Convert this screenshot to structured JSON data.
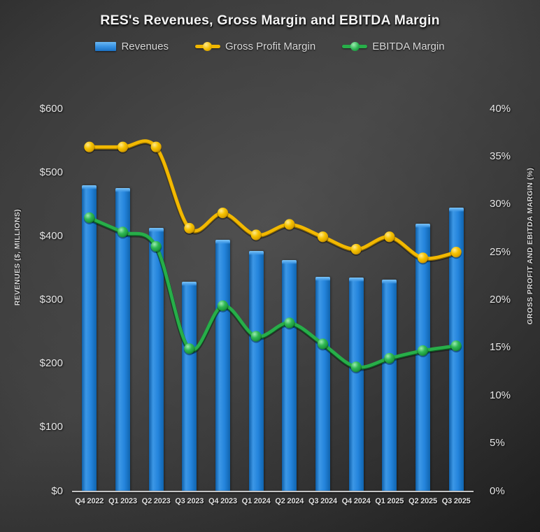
{
  "title": "RES's Revenues, Gross Margin and EBITDA Margin",
  "legend": [
    {
      "label": "Revenues",
      "swatch": "bar-swatch"
    },
    {
      "label": "Gross Profit Margin",
      "swatch": "line-dot-swatch"
    },
    {
      "label": "EBITDA Margin",
      "swatch": "line-dot-swatch"
    }
  ],
  "left_axis": {
    "title": "REVENUES ($, MILLIONS)",
    "tick_labels": [
      "$0",
      "$100",
      "$200",
      "$300",
      "$400",
      "$500",
      "$600"
    ],
    "tick_values": [
      0,
      100,
      200,
      300,
      400,
      500,
      600
    ]
  },
  "right_axis": {
    "title": "GROSS PROFIT AND EBITDA MARGIN (%)",
    "tick_labels": [
      "0%",
      "5%",
      "10%",
      "15%",
      "20%",
      "25%",
      "30%",
      "35%",
      "40%"
    ],
    "tick_values": [
      0,
      5,
      10,
      15,
      20,
      25,
      30,
      35,
      40
    ]
  },
  "colors": {
    "bar_blue": "#2484dc",
    "gross_margin_yellow": "#f0b600",
    "ebitda_green": "#27ae49",
    "axis_line": "#c4c4c4",
    "text": "#e8e8e8"
  },
  "chart_data": {
    "type": "bar",
    "subtype": "combo-bar-line",
    "categories": [
      "Q4 2022",
      "Q1 2023",
      "Q2 2023",
      "Q3 2023",
      "Q4 2023",
      "Q1 2024",
      "Q2 2024",
      "Q3 2024",
      "Q4 2024",
      "Q1 2025",
      "Q2 2025",
      "Q3 2025"
    ],
    "series": [
      {
        "name": "Revenues",
        "type": "bar",
        "axis": "left",
        "unit": "$M",
        "values": [
          480,
          475,
          413,
          329,
          394,
          377,
          362,
          336,
          335,
          332,
          420,
          445
        ]
      },
      {
        "name": "Gross Profit Margin",
        "type": "line",
        "axis": "right",
        "unit": "%",
        "values": [
          36.0,
          36.0,
          36.0,
          27.5,
          29.1,
          26.8,
          27.9,
          26.6,
          25.3,
          26.6,
          24.4,
          25.0
        ]
      },
      {
        "name": "EBITDA Margin",
        "type": "line",
        "axis": "right",
        "unit": "%",
        "values": [
          28.6,
          27.1,
          25.6,
          14.9,
          19.4,
          16.2,
          17.6,
          15.4,
          13.0,
          13.9,
          14.7,
          15.2
        ]
      }
    ],
    "title": "RES's Revenues, Gross Margin and EBITDA Margin",
    "xlabel": "",
    "ylabel_left": "REVENUES ($, MILLIONS)",
    "ylabel_right": "GROSS PROFIT AND EBITDA MARGIN (%)",
    "left_ylim": [
      0,
      600
    ],
    "right_ylim": [
      0,
      40
    ],
    "grid": false,
    "legend_position": "top",
    "smooth_lines": true
  }
}
